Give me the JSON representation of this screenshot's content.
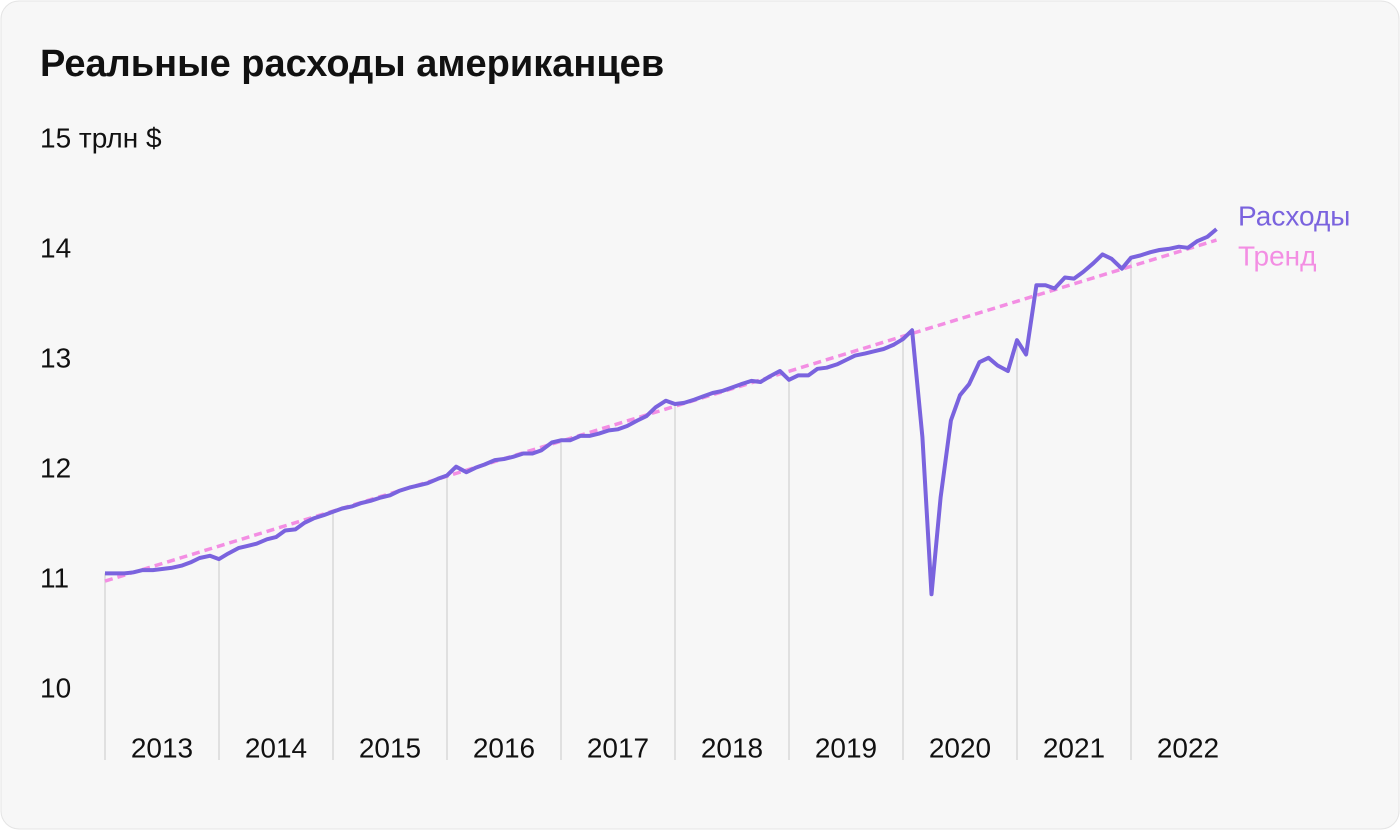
{
  "chart_data": {
    "type": "line",
    "title": "Реальные расходы американцев",
    "xlim": [
      2013,
      2023
    ],
    "xticks": [
      2013,
      2014,
      2015,
      2016,
      2017,
      2018,
      2019,
      2020,
      2021,
      2022
    ],
    "ylim": [
      10,
      15
    ],
    "yticks": [
      10,
      11,
      12,
      13,
      14,
      {
        "value": 15,
        "label": "15 трлн $"
      }
    ],
    "grid": true,
    "legend": "right",
    "series": [
      {
        "name": "Тренд",
        "color": "#f38ee3",
        "dashed": true,
        "x": [
          2013,
          2022.75
        ],
        "values": [
          10.99,
          14.09
        ]
      },
      {
        "name": "Расходы",
        "color": "#7a63de",
        "x": [
          2013,
          2013.08,
          2013.17,
          2013.25,
          2013.33,
          2013.42,
          2013.5,
          2013.58,
          2013.67,
          2013.75,
          2013.83,
          2013.92,
          2014,
          2014.08,
          2014.17,
          2014.25,
          2014.33,
          2014.42,
          2014.5,
          2014.58,
          2014.67,
          2014.75,
          2014.83,
          2014.92,
          2015,
          2015.08,
          2015.17,
          2015.25,
          2015.33,
          2015.42,
          2015.5,
          2015.58,
          2015.67,
          2015.75,
          2015.83,
          2015.92,
          2016,
          2016.08,
          2016.17,
          2016.25,
          2016.33,
          2016.42,
          2016.5,
          2016.58,
          2016.67,
          2016.75,
          2016.83,
          2016.92,
          2017,
          2017.08,
          2017.17,
          2017.25,
          2017.33,
          2017.42,
          2017.5,
          2017.58,
          2017.67,
          2017.75,
          2017.83,
          2017.92,
          2018,
          2018.08,
          2018.17,
          2018.25,
          2018.33,
          2018.42,
          2018.5,
          2018.58,
          2018.67,
          2018.75,
          2018.83,
          2018.92,
          2019,
          2019.08,
          2019.17,
          2019.25,
          2019.33,
          2019.42,
          2019.5,
          2019.58,
          2019.67,
          2019.75,
          2019.83,
          2019.92,
          2020,
          2020.08,
          2020.17,
          2020.25,
          2020.33,
          2020.42,
          2020.5,
          2020.58,
          2020.67,
          2020.75,
          2020.83,
          2020.92,
          2021,
          2021.08,
          2021.17,
          2021.25,
          2021.33,
          2021.42,
          2021.5,
          2021.58,
          2021.67,
          2021.75,
          2021.83,
          2021.92,
          2022,
          2022.08,
          2022.17,
          2022.25,
          2022.33,
          2022.42,
          2022.5,
          2022.58,
          2022.67,
          2022.75
        ],
        "values": [
          11.06,
          11.06,
          11.06,
          11.07,
          11.09,
          11.09,
          11.1,
          11.11,
          11.13,
          11.16,
          11.2,
          11.22,
          11.19,
          11.24,
          11.29,
          11.31,
          11.33,
          11.37,
          11.39,
          11.45,
          11.46,
          11.52,
          11.56,
          11.59,
          11.62,
          11.65,
          11.67,
          11.7,
          11.72,
          11.75,
          11.77,
          11.81,
          11.84,
          11.86,
          11.88,
          11.92,
          11.95,
          12.03,
          11.98,
          12.02,
          12.05,
          12.09,
          12.1,
          12.12,
          12.15,
          12.15,
          12.18,
          12.25,
          12.27,
          12.27,
          12.31,
          12.31,
          12.33,
          12.36,
          12.37,
          12.4,
          12.45,
          12.49,
          12.57,
          12.63,
          12.6,
          12.61,
          12.64,
          12.67,
          12.7,
          12.72,
          12.75,
          12.78,
          12.81,
          12.8,
          12.85,
          12.9,
          12.82,
          12.86,
          12.86,
          12.92,
          12.93,
          12.96,
          13.0,
          13.04,
          13.06,
          13.08,
          13.1,
          13.14,
          13.19,
          13.27,
          12.3,
          10.87,
          11.75,
          12.45,
          12.68,
          12.78,
          12.98,
          13.02,
          12.95,
          12.9,
          13.18,
          13.05,
          13.68,
          13.68,
          13.65,
          13.75,
          13.74,
          13.8,
          13.88,
          13.96,
          13.92,
          13.83,
          13.93,
          13.95,
          13.98,
          14.0,
          14.01,
          14.03,
          14.02,
          14.08,
          14.12,
          14.19
        ]
      }
    ]
  }
}
